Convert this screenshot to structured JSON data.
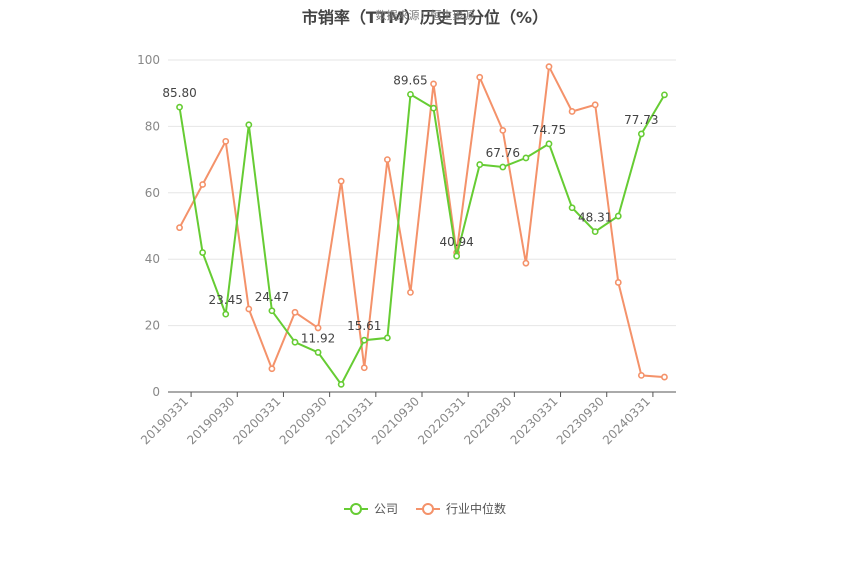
{
  "chart_data": {
    "type": "line",
    "title": "市销率（TTM）历史百分位（%）",
    "subtitle": "数据来源：恒生聚源",
    "ylim": [
      0,
      100
    ],
    "y_ticks": [
      0,
      20,
      40,
      60,
      80,
      100
    ],
    "x_tick_labels": [
      "20190331",
      "20190930",
      "20200331",
      "20200930",
      "20210331",
      "20210930",
      "20220331",
      "20220930",
      "20230331",
      "20230930",
      "20240331"
    ],
    "x": [
      "20190331",
      "20190630",
      "20190930",
      "20191231",
      "20200331",
      "20200630",
      "20200930",
      "20201231",
      "20210331",
      "20210630",
      "20210930",
      "20211231",
      "20220331",
      "20220630",
      "20220930",
      "20221231",
      "20230331",
      "20230630",
      "20230930",
      "20231231",
      "20240331",
      "20240630"
    ],
    "grid": true,
    "legend_position": "bottom",
    "series": [
      {
        "name": "公司",
        "color": "#66cc33",
        "values": [
          85.8,
          42,
          23.45,
          80.5,
          24.47,
          15,
          11.92,
          2.3,
          15.61,
          16.3,
          89.65,
          85.5,
          40.94,
          68.5,
          67.76,
          70.5,
          74.75,
          55.5,
          48.31,
          53,
          77.73,
          89.5
        ],
        "labels": {
          "0": "85.80",
          "2": "23.45",
          "4": "24.47",
          "6": "11.92",
          "8": "15.61",
          "10": "89.65",
          "12": "40.94",
          "14": "67.76",
          "16": "74.75",
          "18": "48.31",
          "20": "77.73"
        }
      },
      {
        "name": "行业中位数",
        "color": "#f4926a",
        "values": [
          49.5,
          62.5,
          75.5,
          25,
          7,
          24,
          19.3,
          63.5,
          7.3,
          70,
          30,
          92.8,
          42,
          94.8,
          78.8,
          38.8,
          98,
          84.5,
          86.5,
          33,
          5,
          4.5
        ]
      }
    ]
  }
}
